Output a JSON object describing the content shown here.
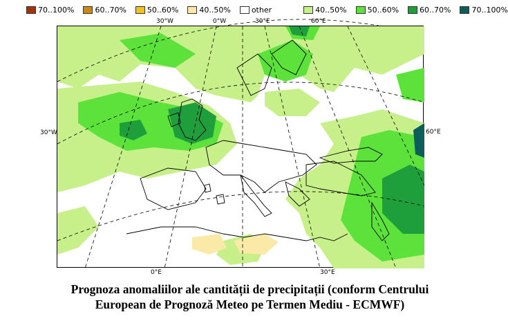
{
  "legend": {
    "items": [
      {
        "label": "70..100%",
        "color": "#a0330a"
      },
      {
        "label": "60..70%",
        "color": "#c98a19"
      },
      {
        "label": "50..60%",
        "color": "#f2c020"
      },
      {
        "label": "40..50%",
        "color": "#fbe9a8"
      },
      {
        "label": "other",
        "color": "#ffffff"
      },
      {
        "label": "40..50%",
        "color": "#c8f08a"
      },
      {
        "label": "50..60%",
        "color": "#5ce23a"
      },
      {
        "label": "60..70%",
        "color": "#1f9e3c"
      },
      {
        "label": "70..100%",
        "color": "#0d5e5a"
      }
    ]
  },
  "map": {
    "top_labels": [
      "30°W",
      "0°W",
      "30°E",
      "60°E"
    ],
    "left_label": "30°W",
    "right_label": "60°E",
    "bottom_labels": [
      "0°E",
      "30°E"
    ]
  },
  "caption": {
    "line1": "Prognoza anomaliilor ale cantității de precipitații (conform Centrului",
    "line2": "European de Prognoză Meteo pe Termen Mediu - ECMWF)"
  }
}
